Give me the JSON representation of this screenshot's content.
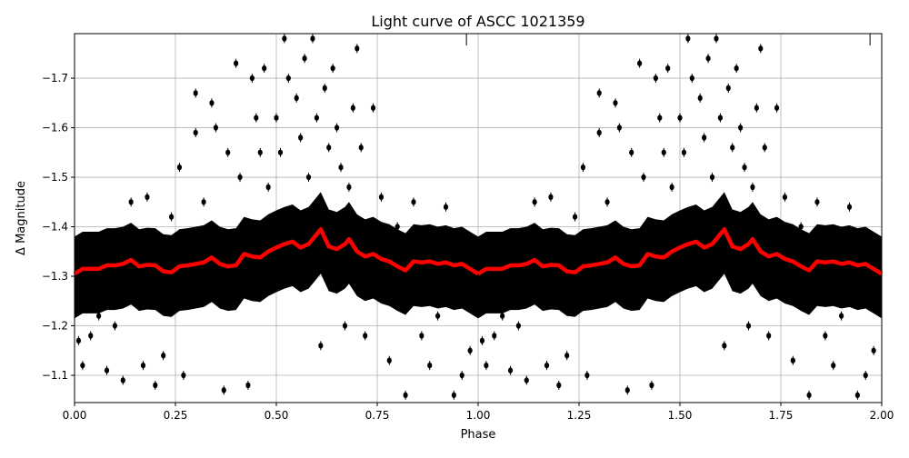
{
  "chart_data": {
    "type": "scatter",
    "title": "Light curve of ASCC 1021359",
    "xlabel": "Phase",
    "ylabel": "Δ Magnitude",
    "xlim": [
      0,
      2
    ],
    "ylim": [
      -1.045,
      -1.79
    ],
    "y_inverted": true,
    "grid": true,
    "x_ticks": [
      "0.00",
      "0.25",
      "0.50",
      "0.75",
      "1.00",
      "1.25",
      "1.50",
      "1.75",
      "2.00"
    ],
    "x_tick_values": [
      0,
      0.25,
      0.5,
      0.75,
      1,
      1.25,
      1.5,
      1.75,
      2
    ],
    "y_ticks": [
      "−1.7",
      "−1.6",
      "−1.5",
      "−1.4",
      "−1.3",
      "−1.2",
      "−1.1"
    ],
    "y_tick_values": [
      -1.7,
      -1.6,
      -1.5,
      -1.4,
      -1.3,
      -1.2,
      -1.1
    ],
    "top_markers": [
      0.971,
      1.971
    ],
    "phase_repeats": [
      0,
      1
    ],
    "colors": {
      "points": "#000000",
      "binned": "#ff0000",
      "grid": "#b0b0b0"
    },
    "points": [
      [
        0.02,
        -1.12
      ],
      [
        0.01,
        -1.17
      ],
      [
        0.04,
        -1.18
      ],
      [
        0.06,
        -1.22
      ],
      [
        0.08,
        -1.11
      ],
      [
        0.1,
        -1.2
      ],
      [
        0.12,
        -1.09
      ],
      [
        0.14,
        -1.45
      ],
      [
        0.17,
        -1.12
      ],
      [
        0.18,
        -1.46
      ],
      [
        0.2,
        -1.08
      ],
      [
        0.22,
        -1.14
      ],
      [
        0.24,
        -1.42
      ],
      [
        0.26,
        -1.52
      ],
      [
        0.27,
        -1.1
      ],
      [
        0.3,
        -1.67
      ],
      [
        0.3,
        -1.59
      ],
      [
        0.32,
        -1.45
      ],
      [
        0.34,
        -1.65
      ],
      [
        0.35,
        -1.6
      ],
      [
        0.37,
        -1.07
      ],
      [
        0.38,
        -1.55
      ],
      [
        0.4,
        -1.73
      ],
      [
        0.41,
        -1.5
      ],
      [
        0.43,
        -1.08
      ],
      [
        0.44,
        -1.7
      ],
      [
        0.45,
        -1.62
      ],
      [
        0.46,
        -1.55
      ],
      [
        0.47,
        -1.72
      ],
      [
        0.48,
        -1.48
      ],
      [
        0.5,
        -1.62
      ],
      [
        0.51,
        -1.55
      ],
      [
        0.52,
        -1.78
      ],
      [
        0.53,
        -1.7
      ],
      [
        0.55,
        -1.66
      ],
      [
        0.56,
        -1.58
      ],
      [
        0.57,
        -1.74
      ],
      [
        0.58,
        -1.5
      ],
      [
        0.59,
        -1.78
      ],
      [
        0.6,
        -1.62
      ],
      [
        0.61,
        -1.16
      ],
      [
        0.62,
        -1.68
      ],
      [
        0.63,
        -1.56
      ],
      [
        0.64,
        -1.72
      ],
      [
        0.65,
        -1.6
      ],
      [
        0.66,
        -1.52
      ],
      [
        0.67,
        -1.2
      ],
      [
        0.68,
        -1.48
      ],
      [
        0.69,
        -1.64
      ],
      [
        0.7,
        -1.76
      ],
      [
        0.71,
        -1.56
      ],
      [
        0.72,
        -1.18
      ],
      [
        0.74,
        -1.64
      ],
      [
        0.76,
        -1.46
      ],
      [
        0.78,
        -1.13
      ],
      [
        0.8,
        -1.4
      ],
      [
        0.82,
        -1.06
      ],
      [
        0.84,
        -1.45
      ],
      [
        0.86,
        -1.18
      ],
      [
        0.88,
        -1.12
      ],
      [
        0.9,
        -1.22
      ],
      [
        0.92,
        -1.44
      ],
      [
        0.94,
        -1.06
      ],
      [
        0.96,
        -1.1
      ],
      [
        0.98,
        -1.15
      ]
    ],
    "binned": {
      "x": [
        0,
        0.02,
        0.04,
        0.06,
        0.08,
        0.1,
        0.12,
        0.14,
        0.16,
        0.18,
        0.2,
        0.22,
        0.24,
        0.26,
        0.28,
        0.3,
        0.32,
        0.34,
        0.36,
        0.38,
        0.4,
        0.42,
        0.44,
        0.46,
        0.48,
        0.5,
        0.52,
        0.54,
        0.56,
        0.58,
        0.6,
        0.61,
        0.63,
        0.65,
        0.67,
        0.68,
        0.7,
        0.72,
        0.74,
        0.76,
        0.78,
        0.8,
        0.82,
        0.84,
        0.86,
        0.88,
        0.9,
        0.92,
        0.94,
        0.96,
        0.98,
        1.0
      ],
      "y": [
        -1.305,
        -1.315,
        -1.315,
        -1.315,
        -1.322,
        -1.322,
        -1.325,
        -1.333,
        -1.32,
        -1.323,
        -1.322,
        -1.31,
        -1.308,
        -1.32,
        -1.322,
        -1.325,
        -1.328,
        -1.338,
        -1.325,
        -1.32,
        -1.322,
        -1.345,
        -1.34,
        -1.338,
        -1.35,
        -1.358,
        -1.365,
        -1.37,
        -1.358,
        -1.365,
        -1.385,
        -1.395,
        -1.36,
        -1.355,
        -1.365,
        -1.375,
        -1.35,
        -1.34,
        -1.345,
        -1.335,
        -1.33,
        -1.32,
        -1.312,
        -1.33,
        -1.328,
        -1.33,
        -1.325,
        -1.328,
        -1.322,
        -1.325,
        -1.315,
        -1.305
      ]
    }
  }
}
